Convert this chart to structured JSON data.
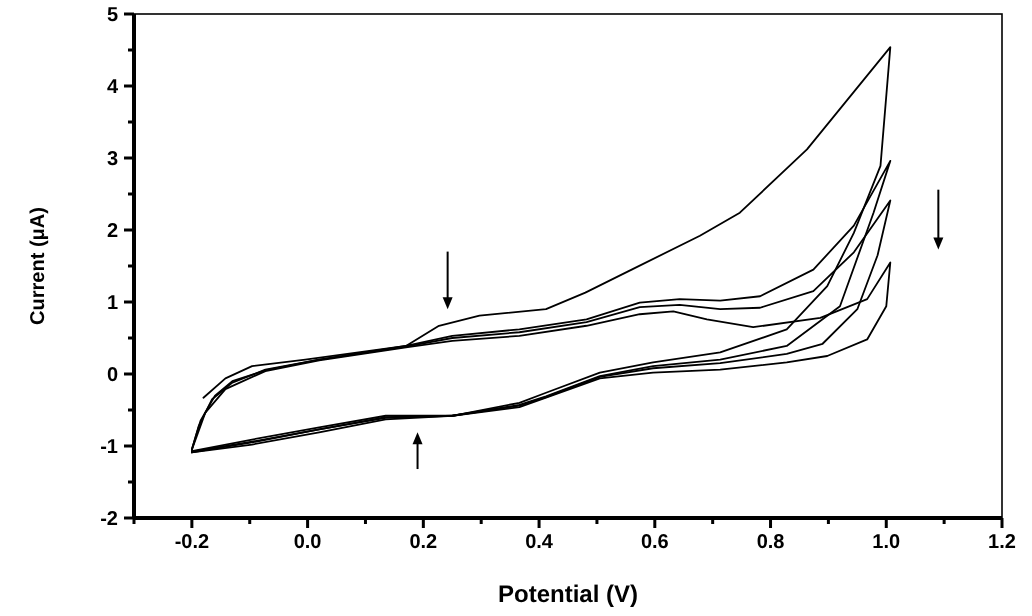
{
  "chart_data": {
    "type": "line",
    "xlabel": "Potential (V)",
    "ylabel": "Current (μA)",
    "xlim": [
      -0.3,
      1.2
    ],
    "ylim": [
      -2,
      5
    ],
    "xticks": [
      {
        "value": -0.3,
        "label": null
      },
      -0.2,
      {
        "value": -0.1,
        "label": null
      },
      {
        "value": 0,
        "label": "0.0"
      },
      {
        "value": 0.1,
        "label": null
      },
      0.2,
      {
        "value": 0.3,
        "label": null
      },
      0.4,
      {
        "value": 0.5,
        "label": null
      },
      0.6,
      {
        "value": 0.7,
        "label": null
      },
      0.8,
      {
        "value": 0.9,
        "label": null
      },
      {
        "value": 1,
        "label": "1.0"
      },
      {
        "value": 1.1,
        "label": null
      },
      1.2
    ],
    "yticks": [
      -2,
      {
        "value": -1.5,
        "label": null
      },
      -1,
      {
        "value": -0.5,
        "label": null
      },
      0,
      {
        "value": 0.5,
        "label": null
      },
      1,
      {
        "value": 1.5,
        "label": null
      },
      2,
      {
        "value": 2.5,
        "label": null
      },
      3,
      {
        "value": 3.5,
        "label": null
      },
      4,
      {
        "value": 4.5,
        "label": null
      },
      5
    ],
    "grid": false,
    "line_style": "solid",
    "marker": "none",
    "series": [
      {
        "color": "#000000",
        "x": [
          -0.18,
          -0.142,
          -0.096,
          -0.004,
          0.17,
          0.227,
          0.297,
          0.412,
          0.48,
          0.56,
          0.678,
          0.747,
          0.863,
          1.007,
          0.99,
          0.944,
          0.898,
          0.828,
          0.713,
          0.597,
          0.505,
          0.412,
          0.366,
          0.25,
          0.135,
          0.02,
          -0.096,
          -0.2
        ],
        "values": [
          -0.33,
          -0.06,
          0.11,
          0.2,
          0.39,
          0.67,
          0.81,
          0.9,
          1.13,
          1.45,
          1.92,
          2.24,
          3.12,
          4.54,
          2.89,
          1.96,
          1.22,
          0.62,
          0.3,
          0.16,
          0.02,
          -0.26,
          -0.4,
          -0.58,
          -0.61,
          -0.77,
          -0.95,
          -1.09
        ]
      },
      {
        "color": "#000000",
        "x": [
          -0.2,
          -0.188,
          -0.165,
          -0.13,
          -0.073,
          0.02,
          0.17,
          0.25,
          0.366,
          0.482,
          0.574,
          0.643,
          0.713,
          0.782,
          0.874,
          0.944,
          1.007,
          0.978,
          0.92,
          0.828,
          0.713,
          0.597,
          0.505,
          0.412,
          0.366,
          0.25,
          0.135,
          0.02,
          -0.096,
          -0.2
        ],
        "values": [
          -1.05,
          -0.72,
          -0.35,
          -0.12,
          0.06,
          0.2,
          0.39,
          0.53,
          0.62,
          0.76,
          0.99,
          1.04,
          1.02,
          1.08,
          1.45,
          2.06,
          2.96,
          2.24,
          0.94,
          0.39,
          0.2,
          0.11,
          -0.03,
          -0.31,
          -0.43,
          -0.58,
          -0.63,
          -0.81,
          -0.98,
          -1.09
        ]
      },
      {
        "color": "#000000",
        "x": [
          -0.2,
          -0.185,
          -0.16,
          -0.13,
          -0.073,
          0.02,
          0.17,
          0.25,
          0.366,
          0.482,
          0.574,
          0.643,
          0.713,
          0.782,
          0.874,
          0.944,
          1.007,
          0.985,
          0.95,
          0.89,
          0.828,
          0.713,
          0.597,
          0.505,
          0.412,
          0.366,
          0.25,
          0.135,
          0.02,
          -0.096,
          -0.2
        ],
        "values": [
          -1.05,
          -0.65,
          -0.3,
          -0.1,
          0.05,
          0.2,
          0.38,
          0.5,
          0.58,
          0.72,
          0.93,
          0.96,
          0.9,
          0.92,
          1.15,
          1.69,
          2.41,
          1.65,
          0.9,
          0.42,
          0.28,
          0.15,
          0.08,
          -0.04,
          -0.32,
          -0.44,
          -0.58,
          -0.6,
          -0.77,
          -0.94,
          -1.08
        ]
      },
      {
        "color": "#000000",
        "x": [
          -0.2,
          -0.177,
          -0.142,
          -0.073,
          0.02,
          0.17,
          0.25,
          0.366,
          0.482,
          0.574,
          0.632,
          0.69,
          0.77,
          0.886,
          0.967,
          1.007,
          1.0,
          0.967,
          0.898,
          0.828,
          0.713,
          0.597,
          0.505,
          0.412,
          0.366,
          0.25,
          0.135,
          0.02,
          -0.096,
          -0.2
        ],
        "values": [
          -1.05,
          -0.54,
          -0.21,
          0.04,
          0.19,
          0.37,
          0.46,
          0.53,
          0.67,
          0.83,
          0.87,
          0.76,
          0.65,
          0.78,
          1.04,
          1.55,
          0.94,
          0.48,
          0.25,
          0.16,
          0.06,
          0.02,
          -0.06,
          -0.33,
          -0.46,
          -0.58,
          -0.58,
          -0.74,
          -0.91,
          -1.07
        ]
      }
    ]
  }
}
